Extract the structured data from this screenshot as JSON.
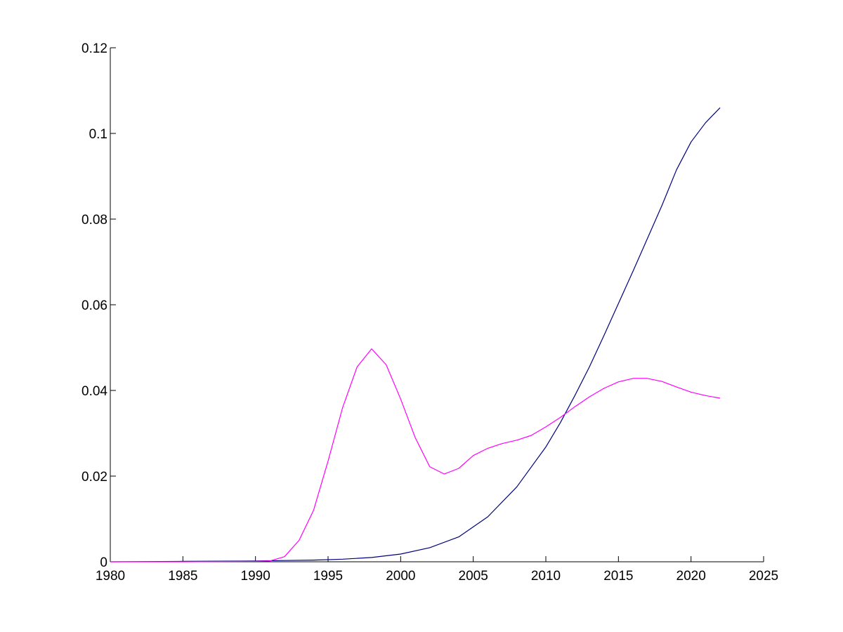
{
  "chart_data": {
    "type": "line",
    "title": "",
    "xlabel": "",
    "ylabel": "",
    "xlim": [
      1980,
      2025
    ],
    "ylim": [
      0,
      0.12
    ],
    "xticks": [
      1980,
      1985,
      1990,
      1995,
      2000,
      2005,
      2010,
      2015,
      2020,
      2025
    ],
    "xtick_labels": [
      "1980",
      "1985",
      "1990",
      "1995",
      "2000",
      "2005",
      "2010",
      "2015",
      "2020",
      "2025"
    ],
    "yticks": [
      0,
      0.02,
      0.04,
      0.06,
      0.08,
      0.1,
      0.12
    ],
    "ytick_labels": [
      "0",
      "0.02",
      "0.04",
      "0.06",
      "0.08",
      "0.1",
      "0.12"
    ],
    "grid": false,
    "legend": "none",
    "series": [
      {
        "color": "#000080",
        "x": [
          1980,
          1985,
          1990,
          1992,
          1994,
          1996,
          1998,
          2000,
          2002,
          2004,
          2006,
          2008,
          2010,
          2011,
          2012,
          2013,
          2014,
          2015,
          2016,
          2017,
          2018,
          2019,
          2020,
          2021,
          2022
        ],
        "y": [
          0,
          0.0001,
          0.0002,
          0.0003,
          0.0004,
          0.0006,
          0.001,
          0.0018,
          0.0033,
          0.0058,
          0.0105,
          0.0175,
          0.0268,
          0.0325,
          0.0388,
          0.0455,
          0.0528,
          0.0603,
          0.0678,
          0.0755,
          0.0832,
          0.0915,
          0.098,
          0.1025,
          0.106
        ]
      },
      {
        "color": "#ff00ff",
        "x": [
          1980,
          1985,
          1990,
          1991,
          1992,
          1993,
          1994,
          1995,
          1996,
          1997,
          1998,
          1999,
          2000,
          2001,
          2002,
          2003,
          2004,
          2005,
          2006,
          2007,
          2008,
          2009,
          2010,
          2011,
          2012,
          2013,
          2014,
          2015,
          2016,
          2017,
          2018,
          2019,
          2020,
          2021,
          2022
        ],
        "y": [
          0,
          0,
          0.0001,
          0.0002,
          0.0012,
          0.005,
          0.012,
          0.0235,
          0.036,
          0.0455,
          0.0497,
          0.046,
          0.038,
          0.029,
          0.0222,
          0.0205,
          0.0218,
          0.0248,
          0.0265,
          0.0276,
          0.0284,
          0.0295,
          0.0315,
          0.0337,
          0.0362,
          0.0385,
          0.0405,
          0.042,
          0.0428,
          0.0428,
          0.0421,
          0.0408,
          0.0396,
          0.0388,
          0.0382
        ]
      }
    ]
  }
}
